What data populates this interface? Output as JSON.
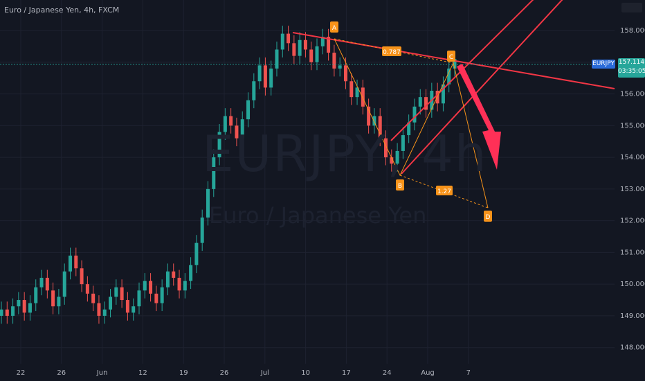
{
  "chart_title": "Euro / Japanese Yen, 4h, FXCM",
  "watermark": {
    "symbol": "EURJPY, 4h",
    "name": "Euro / Japanese Yen"
  },
  "price_tag": {
    "symbol": "EURJPY",
    "price": "157.114",
    "countdown": "03:35:05"
  },
  "colors": {
    "background": "#131722",
    "up": "#26a69a",
    "down": "#ef5350",
    "pattern": "#f7931a",
    "lines": "#f23645",
    "price_line": "#26a69a"
  },
  "chart_data": {
    "type": "candlestick",
    "ylim": [
      147.6,
      158.7
    ],
    "y_ticks": [
      "148.000",
      "149.000",
      "150.000",
      "151.000",
      "152.000",
      "153.000",
      "154.000",
      "155.000",
      "156.000",
      "157.000",
      "158.000"
    ],
    "x_ticks": [
      "22",
      "26",
      "Jun",
      "12",
      "19",
      "26",
      "Jul",
      "10",
      "17",
      "24",
      "Aug",
      "7"
    ],
    "current_price": 157.114,
    "pattern_points": [
      {
        "label": "A",
        "price": 157.95
      },
      {
        "label": "B",
        "price": 153.6
      },
      {
        "label": "C",
        "price": 157.1
      },
      {
        "label": "D",
        "price": 152.7
      }
    ],
    "ratios": [
      "0.787",
      "1.27"
    ],
    "candles_close": [
      149.2,
      149.0,
      149.3,
      149.5,
      149.1,
      149.4,
      149.9,
      150.2,
      149.8,
      149.3,
      149.6,
      150.4,
      150.9,
      150.5,
      150.0,
      149.7,
      149.4,
      149.0,
      149.2,
      149.6,
      149.9,
      149.5,
      149.1,
      149.3,
      149.8,
      150.1,
      149.7,
      149.4,
      149.9,
      150.4,
      150.2,
      149.8,
      150.1,
      150.6,
      151.3,
      152.1,
      153.0,
      154.0,
      154.8,
      155.3,
      155.0,
      154.6,
      155.2,
      155.8,
      156.4,
      156.9,
      156.2,
      156.8,
      157.4,
      157.9,
      157.6,
      157.2,
      157.7,
      157.4,
      157.0,
      157.5,
      157.8,
      157.3,
      156.8,
      156.9,
      156.4,
      155.9,
      156.2,
      155.6,
      155.0,
      155.3,
      154.6,
      154.0,
      153.8,
      154.2,
      154.7,
      155.1,
      155.6,
      155.9,
      155.5,
      156.1,
      155.7,
      156.3,
      156.8,
      157.1
    ]
  }
}
